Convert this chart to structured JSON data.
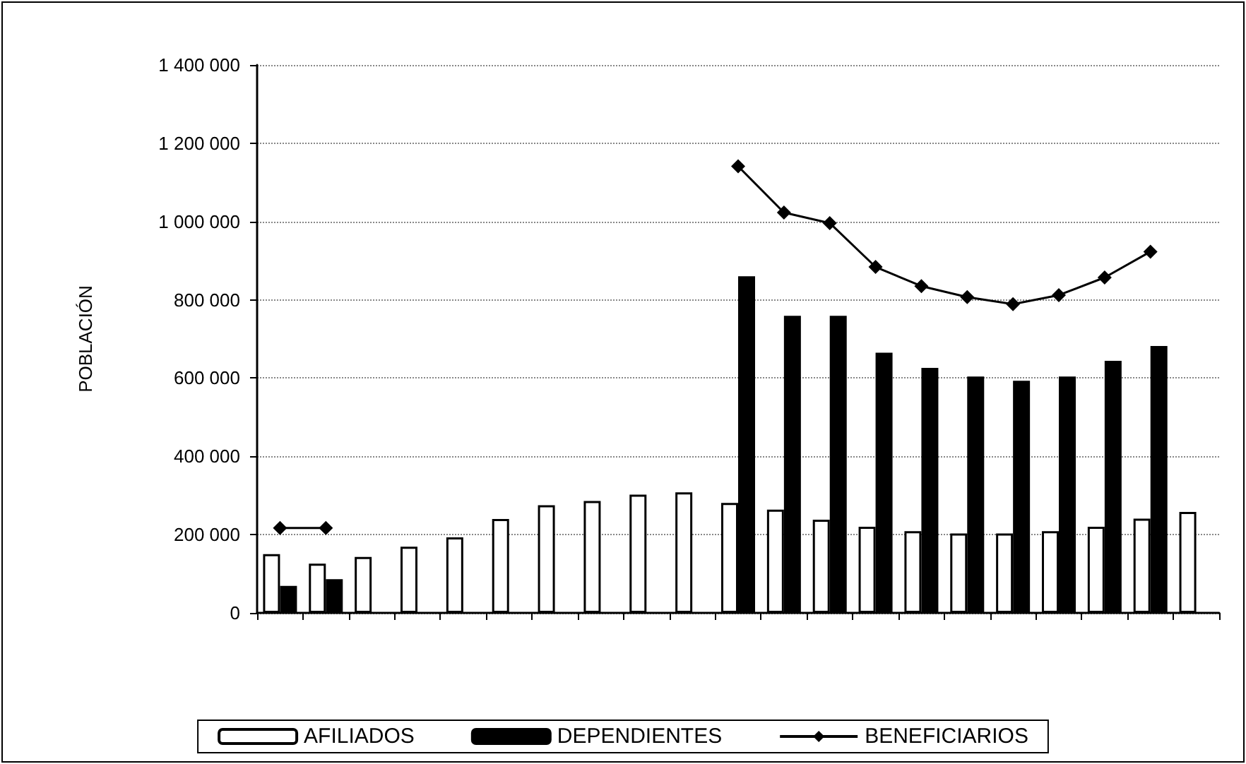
{
  "chart_data": {
    "type": "bar",
    "ylabel": "POBLACIÓN",
    "categories": [
      null,
      null,
      null,
      null,
      null,
      null,
      null,
      null,
      null,
      null,
      null,
      null,
      null,
      null,
      null,
      null,
      null,
      null,
      null,
      null,
      null
    ],
    "series": [
      {
        "name": "AFILIADOS",
        "color": "#ffffff",
        "values": [
          150000,
          126000,
          143000,
          169000,
          193000,
          240000,
          275000,
          286000,
          302000,
          308000,
          281000,
          264000,
          238000,
          220000,
          209000,
          203000,
          203000,
          209000,
          220000,
          241000,
          258000
        ]
      },
      {
        "name": "DEPENDIENTES",
        "color": "#000000",
        "values": [
          69000,
          86000,
          null,
          null,
          null,
          null,
          null,
          null,
          null,
          null,
          860000,
          759000,
          759000,
          665000,
          626000,
          604000,
          593000,
          604000,
          644000,
          682000,
          null
        ]
      },
      {
        "name": "BENEFICIARIOS",
        "type": "line",
        "color": "#000000",
        "marker": "diamond",
        "values": [
          217000,
          217000,
          null,
          null,
          null,
          null,
          null,
          null,
          null,
          null,
          1141000,
          1023000,
          996000,
          884000,
          835000,
          807000,
          789000,
          812000,
          857000,
          923000,
          null
        ]
      }
    ],
    "ylim": [
      0,
      1400000
    ],
    "yticks": [
      {
        "value": 0,
        "label": "0"
      },
      {
        "value": 200000,
        "label": "200 000"
      },
      {
        "value": 400000,
        "label": "400 000"
      },
      {
        "value": 600000,
        "label": "600 000"
      },
      {
        "value": 800000,
        "label": "800 000"
      },
      {
        "value": 1000000,
        "label": "1 000 000"
      },
      {
        "value": 1200000,
        "label": "1 200 000"
      },
      {
        "value": 1400000,
        "label": "1 400 000"
      }
    ],
    "grid": "y",
    "legend": "bottom"
  }
}
